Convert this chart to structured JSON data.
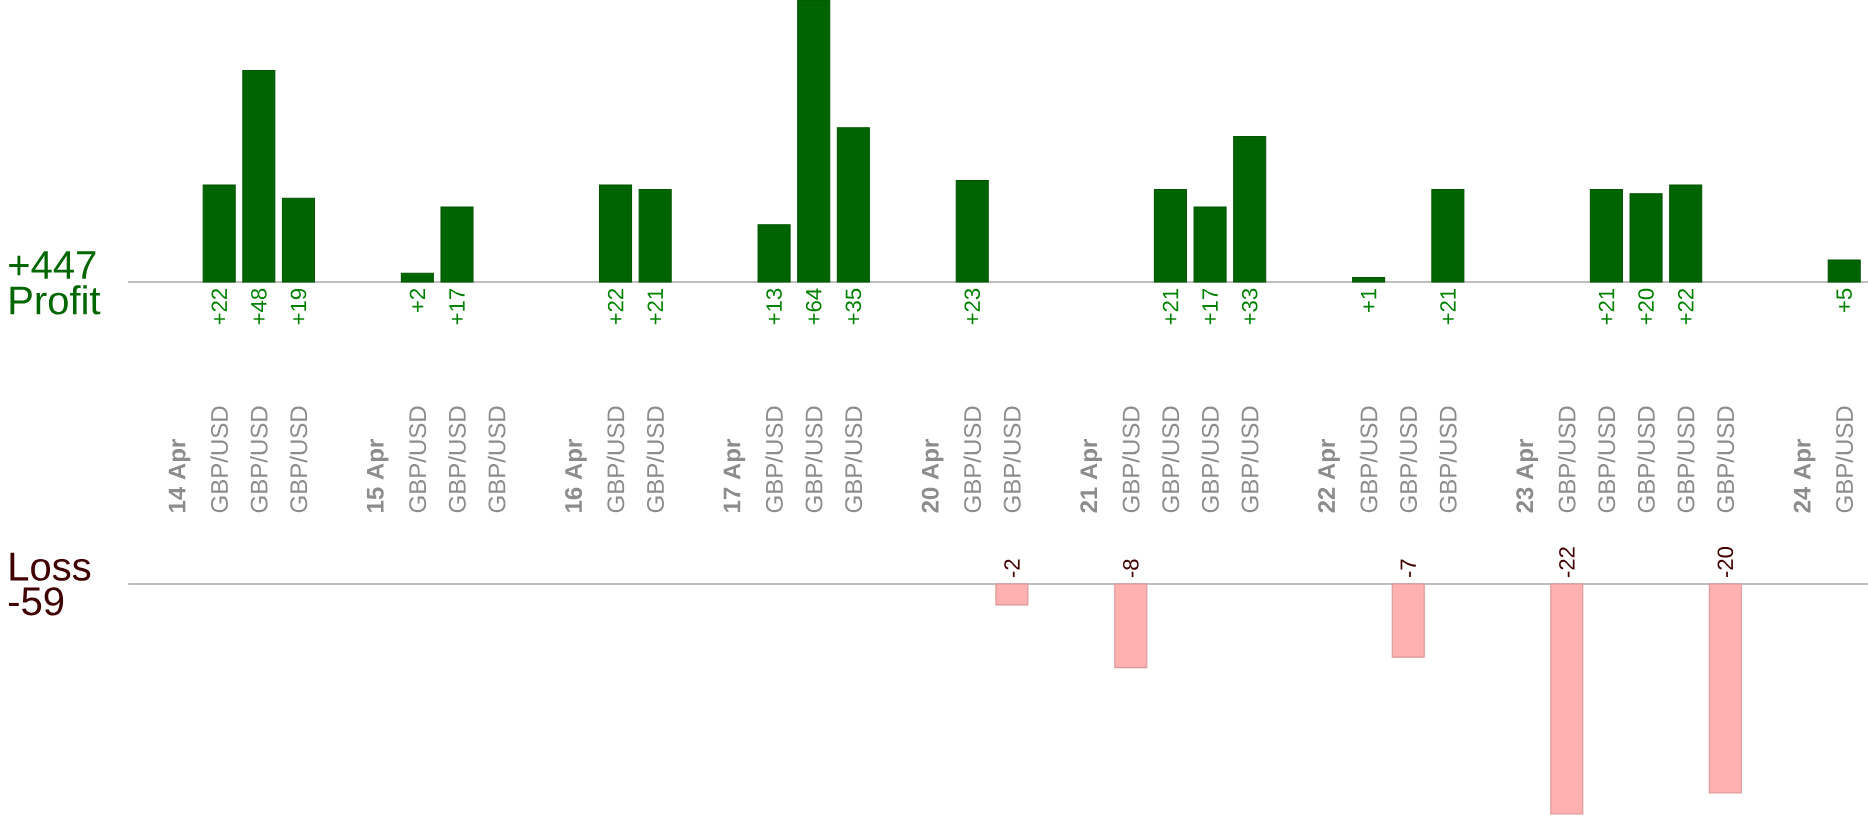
{
  "chart_data": [
    {
      "type": "bar",
      "ylabel": "Profit",
      "annotations": [
        "+447"
      ],
      "categories": [
        "**14 Apr**",
        "GBP/USD",
        "GBP/USD",
        "GBP/USD",
        null,
        "**15 Apr**",
        "GBP/USD",
        "GBP/USD",
        "GBP/USD",
        null,
        "**16 Apr**",
        "GBP/USD",
        "GBP/USD",
        null,
        "**17 Apr**",
        "GBP/USD",
        "GBP/USD",
        "GBP/USD",
        null,
        "**20 Apr**",
        "GBP/USD",
        "GBP/USD",
        null,
        "**21 Apr**",
        "GBP/USD",
        "GBP/USD",
        "GBP/USD",
        "GBP/USD",
        null,
        "**22 Apr**",
        "GBP/USD",
        "GBP/USD",
        "GBP/USD",
        null,
        "**23 Apr**",
        "GBP/USD",
        "GBP/USD",
        "GBP/USD",
        "GBP/USD",
        "GBP/USD",
        null,
        "**24 Apr**",
        "GBP/USD"
      ],
      "values": [
        null,
        22,
        48,
        19,
        null,
        null,
        2,
        17,
        null,
        null,
        null,
        22,
        21,
        null,
        null,
        13,
        64,
        35,
        null,
        null,
        23,
        null,
        null,
        null,
        null,
        21,
        17,
        33,
        null,
        null,
        1,
        null,
        21,
        null,
        null,
        null,
        21,
        20,
        22,
        null,
        null,
        null,
        5
      ],
      "value_labels": [
        null,
        "+22",
        "+48",
        "+19",
        null,
        null,
        "+2",
        "+17",
        null,
        null,
        null,
        "+22",
        "+21",
        null,
        null,
        "+13",
        "+64",
        "+35",
        null,
        null,
        "+23",
        null,
        null,
        null,
        null,
        "+21",
        "+17",
        "+33",
        null,
        null,
        "+1",
        null,
        "+21",
        null,
        null,
        null,
        "+21",
        "+20",
        "+22",
        null,
        null,
        null,
        "+5"
      ],
      "color": "#006400",
      "ylim": [
        0,
        64
      ]
    },
    {
      "type": "bar",
      "ylabel": "Loss",
      "annotations": [
        "-59"
      ],
      "categories": [
        null,
        null,
        null,
        null,
        null,
        null,
        null,
        null,
        null,
        null,
        null,
        null,
        null,
        null,
        null,
        null,
        null,
        null,
        null,
        null,
        null,
        null,
        null,
        null,
        null,
        null,
        null,
        null,
        null,
        null,
        null,
        null,
        null,
        null,
        null,
        null,
        null,
        null,
        null,
        null,
        null,
        null,
        null
      ],
      "values": [
        null,
        null,
        null,
        null,
        null,
        null,
        null,
        null,
        null,
        null,
        null,
        null,
        null,
        null,
        null,
        null,
        null,
        null,
        null,
        null,
        null,
        -2,
        null,
        null,
        -8,
        null,
        null,
        null,
        null,
        null,
        null,
        -7,
        null,
        null,
        null,
        -22,
        null,
        null,
        null,
        -20,
        null,
        null,
        null
      ],
      "value_labels": [
        null,
        null,
        null,
        null,
        null,
        null,
        null,
        null,
        null,
        null,
        null,
        null,
        null,
        null,
        null,
        null,
        null,
        null,
        null,
        null,
        null,
        "-2",
        null,
        null,
        "-8",
        null,
        null,
        null,
        null,
        null,
        null,
        "-7",
        null,
        null,
        null,
        "-22",
        null,
        null,
        null,
        "-20",
        null,
        null,
        null
      ],
      "color": "#ffb0b0",
      "ylim": [
        -22,
        0
      ]
    }
  ]
}
